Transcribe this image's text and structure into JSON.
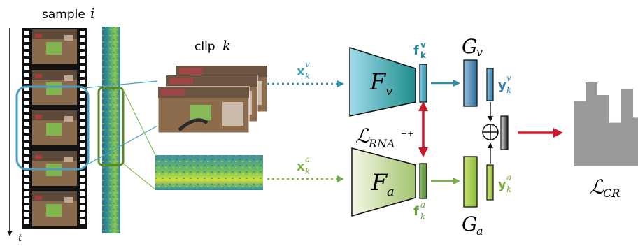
{
  "sample_label": "sample",
  "sample_index": "i",
  "time_axis": "t",
  "clip_label": "clip",
  "clip_index": "k",
  "inputs": {
    "visual": {
      "base": "x",
      "sub": "k",
      "sup": "v",
      "color": "#3a9bb0"
    },
    "audio": {
      "base": "x",
      "sub": "k",
      "sup": "a",
      "color": "#7aad3f"
    }
  },
  "encoders": {
    "visual": {
      "base": "F",
      "sub": "v"
    },
    "audio": {
      "base": "F",
      "sub": "a"
    }
  },
  "features": {
    "visual": {
      "base": "f",
      "sub": "k",
      "sup": "v"
    },
    "audio": {
      "base": "f",
      "sub": "k",
      "sup": "a"
    }
  },
  "projectors": {
    "visual": {
      "base": "G",
      "sub": "v"
    },
    "audio": {
      "base": "G",
      "sub": "a"
    }
  },
  "projections": {
    "visual": {
      "base": "y",
      "sub": "k",
      "sup": "v"
    },
    "audio": {
      "base": "y",
      "sub": "k",
      "sup": "a"
    }
  },
  "losses": {
    "rna": {
      "base": "ℒ",
      "sub": "RNA",
      "sup": "++"
    },
    "cr": {
      "base": "ℒ",
      "sub": "CR"
    }
  },
  "concat_symbol": "⊕",
  "histogram_values": [
    0.78,
    1.0,
    0.85,
    0.52,
    0.92,
    0.58,
    0.9
  ],
  "colors": {
    "visual": "#2f8fa6",
    "audio": "#7bb04a",
    "loss_arrow": "#d0182b",
    "bars": "#9a9a9a",
    "film": "#111111"
  }
}
